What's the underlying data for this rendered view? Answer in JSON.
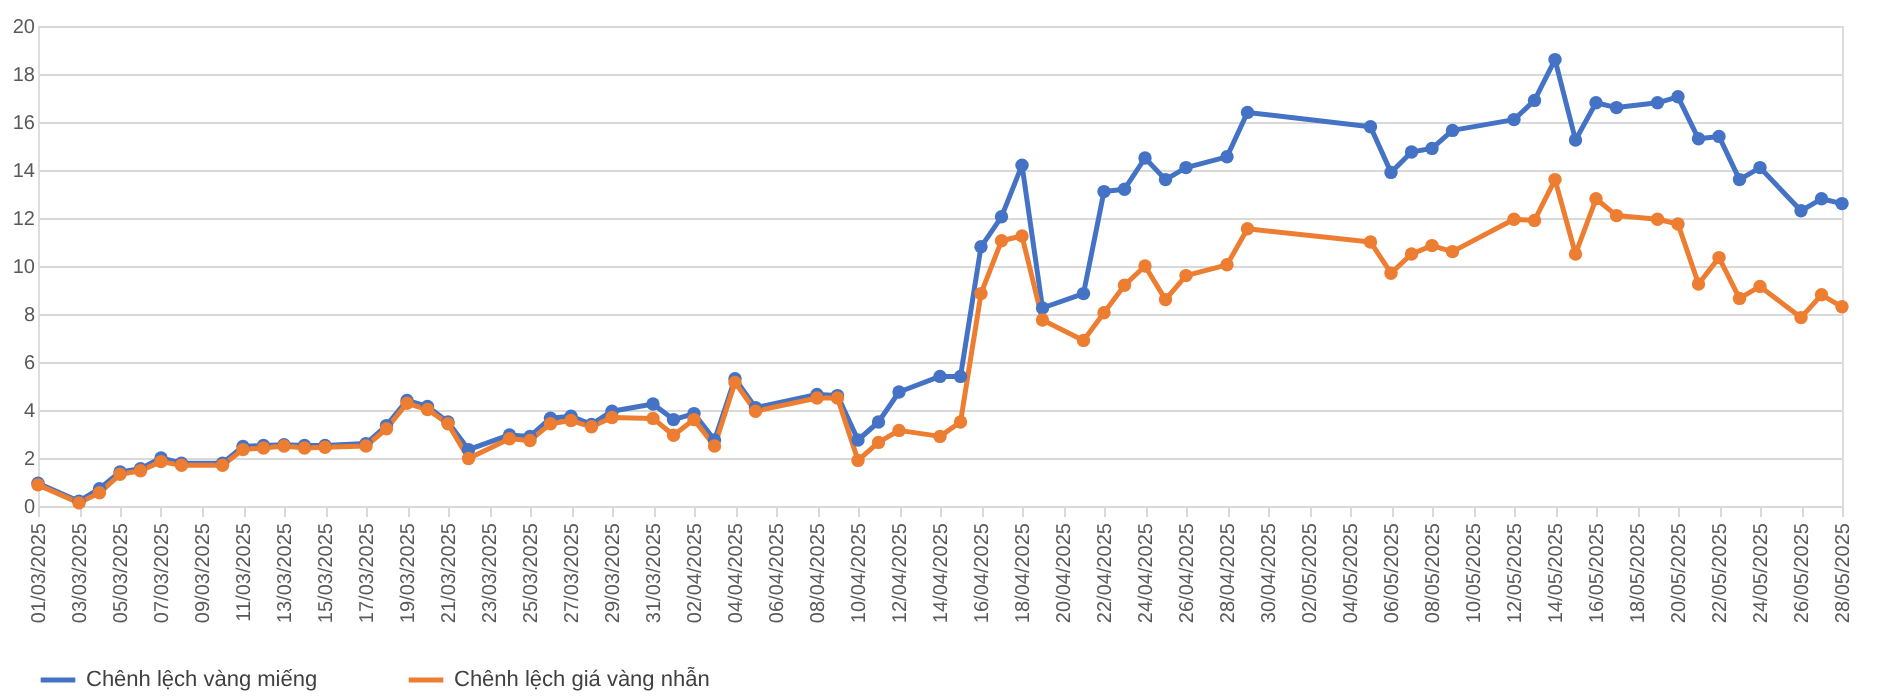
{
  "chart_data": {
    "type": "line",
    "x": [
      "2025-03-01",
      "2025-03-03",
      "2025-03-04",
      "2025-03-05",
      "2025-03-06",
      "2025-03-07",
      "2025-03-08",
      "2025-03-10",
      "2025-03-11",
      "2025-03-12",
      "2025-03-13",
      "2025-03-14",
      "2025-03-15",
      "2025-03-17",
      "2025-03-18",
      "2025-03-19",
      "2025-03-20",
      "2025-03-21",
      "2025-03-22",
      "2025-03-24",
      "2025-03-25",
      "2025-03-26",
      "2025-03-27",
      "2025-03-28",
      "2025-03-29",
      "2025-03-31",
      "2025-04-01",
      "2025-04-02",
      "2025-04-03",
      "2025-04-04",
      "2025-04-05",
      "2025-04-08",
      "2025-04-09",
      "2025-04-10",
      "2025-04-11",
      "2025-04-12",
      "2025-04-14",
      "2025-04-15",
      "2025-04-16",
      "2025-04-17",
      "2025-04-18",
      "2025-04-19",
      "2025-04-21",
      "2025-04-22",
      "2025-04-23",
      "2025-04-24",
      "2025-04-25",
      "2025-04-26",
      "2025-04-28",
      "2025-04-29",
      "2025-05-05",
      "2025-05-06",
      "2025-05-07",
      "2025-05-08",
      "2025-05-09",
      "2025-05-12",
      "2025-05-13",
      "2025-05-14",
      "2025-05-15",
      "2025-05-16",
      "2025-05-17",
      "2025-05-19",
      "2025-05-20",
      "2025-05-21",
      "2025-05-22",
      "2025-05-23",
      "2025-05-24",
      "2025-05-26",
      "2025-05-27",
      "2025-05-28"
    ],
    "series": [
      {
        "name": "Chênh lệch vàng miếng",
        "color": "#4472c4",
        "values": [
          0.95,
          0.2,
          0.72,
          1.42,
          1.55,
          2.0,
          1.78,
          1.78,
          2.48,
          2.52,
          2.55,
          2.52,
          2.52,
          2.6,
          3.35,
          4.4,
          4.15,
          3.5,
          2.35,
          2.96,
          2.9,
          3.66,
          3.74,
          3.4,
          3.95,
          4.25,
          3.6,
          3.85,
          2.75,
          5.3,
          4.1,
          4.65,
          4.6,
          2.75,
          3.5,
          4.75,
          5.4,
          5.4,
          10.8,
          12.05,
          14.2,
          8.25,
          8.85,
          13.1,
          13.2,
          14.5,
          13.6,
          14.1,
          14.55,
          16.4,
          15.8,
          13.9,
          14.75,
          14.9,
          15.65,
          16.1,
          16.9,
          18.6,
          15.25,
          16.8,
          16.6,
          16.8,
          17.05,
          15.3,
          15.4,
          13.6,
          14.1,
          12.3,
          12.8,
          12.6
        ]
      },
      {
        "name": "Chênh lệch giá vàng nhẫn",
        "color": "#ed7d31",
        "values": [
          0.88,
          0.13,
          0.55,
          1.32,
          1.47,
          1.85,
          1.7,
          1.7,
          2.35,
          2.42,
          2.5,
          2.42,
          2.45,
          2.5,
          3.22,
          4.28,
          4.02,
          3.43,
          1.98,
          2.8,
          2.73,
          3.43,
          3.56,
          3.3,
          3.69,
          3.65,
          2.95,
          3.6,
          2.5,
          5.15,
          3.95,
          4.5,
          4.5,
          1.9,
          2.65,
          3.15,
          2.9,
          3.5,
          8.85,
          11.05,
          11.25,
          7.75,
          6.9,
          8.05,
          9.2,
          10.0,
          8.6,
          9.6,
          10.05,
          11.55,
          11.0,
          9.7,
          10.5,
          10.85,
          10.6,
          11.95,
          11.9,
          13.6,
          10.5,
          12.8,
          12.1,
          11.95,
          11.75,
          9.25,
          10.35,
          8.65,
          9.15,
          7.85,
          8.8,
          8.3
        ]
      }
    ],
    "xlim": [
      "2025-03-01",
      "2025-05-28"
    ],
    "xticks": [
      {
        "value": "2025-03-01",
        "label": "01/03/2025"
      },
      {
        "value": "2025-03-03",
        "label": "03/03/2025"
      },
      {
        "value": "2025-03-05",
        "label": "05/03/2025"
      },
      {
        "value": "2025-03-07",
        "label": "07/03/2025"
      },
      {
        "value": "2025-03-09",
        "label": "09/03/2025"
      },
      {
        "value": "2025-03-11",
        "label": "11/03/2025"
      },
      {
        "value": "2025-03-13",
        "label": "13/03/2025"
      },
      {
        "value": "2025-03-15",
        "label": "15/03/2025"
      },
      {
        "value": "2025-03-17",
        "label": "17/03/2025"
      },
      {
        "value": "2025-03-19",
        "label": "19/03/2025"
      },
      {
        "value": "2025-03-21",
        "label": "21/03/2025"
      },
      {
        "value": "2025-03-23",
        "label": "23/03/2025"
      },
      {
        "value": "2025-03-25",
        "label": "25/03/2025"
      },
      {
        "value": "2025-03-27",
        "label": "27/03/2025"
      },
      {
        "value": "2025-03-29",
        "label": "29/03/2025"
      },
      {
        "value": "2025-03-31",
        "label": "31/03/2025"
      },
      {
        "value": "2025-04-02",
        "label": "02/04/2025"
      },
      {
        "value": "2025-04-04",
        "label": "04/04/2025"
      },
      {
        "value": "2025-04-06",
        "label": "06/04/2025"
      },
      {
        "value": "2025-04-08",
        "label": "08/04/2025"
      },
      {
        "value": "2025-04-10",
        "label": "10/04/2025"
      },
      {
        "value": "2025-04-12",
        "label": "12/04/2025"
      },
      {
        "value": "2025-04-14",
        "label": "14/04/2025"
      },
      {
        "value": "2025-04-16",
        "label": "16/04/2025"
      },
      {
        "value": "2025-04-18",
        "label": "18/04/2025"
      },
      {
        "value": "2025-04-20",
        "label": "20/04/2025"
      },
      {
        "value": "2025-04-22",
        "label": "22/04/2025"
      },
      {
        "value": "2025-04-24",
        "label": "24/04/2025"
      },
      {
        "value": "2025-04-26",
        "label": "26/04/2025"
      },
      {
        "value": "2025-04-28",
        "label": "28/04/2025"
      },
      {
        "value": "2025-04-30",
        "label": "30/04/2025"
      },
      {
        "value": "2025-05-02",
        "label": "02/05/2025"
      },
      {
        "value": "2025-05-04",
        "label": "04/05/2025"
      },
      {
        "value": "2025-05-06",
        "label": "06/05/2025"
      },
      {
        "value": "2025-05-08",
        "label": "08/05/2025"
      },
      {
        "value": "2025-05-10",
        "label": "10/05/2025"
      },
      {
        "value": "2025-05-12",
        "label": "12/05/2025"
      },
      {
        "value": "2025-05-14",
        "label": "14/05/2025"
      },
      {
        "value": "2025-05-16",
        "label": "16/05/2025"
      },
      {
        "value": "2025-05-18",
        "label": "18/05/2025"
      },
      {
        "value": "2025-05-20",
        "label": "20/05/2025"
      },
      {
        "value": "2025-05-22",
        "label": "22/05/2025"
      },
      {
        "value": "2025-05-24",
        "label": "24/05/2025"
      },
      {
        "value": "2025-05-26",
        "label": "26/05/2025"
      },
      {
        "value": "2025-05-28",
        "label": "28/05/2025"
      }
    ],
    "ylim": [
      0,
      20
    ],
    "yticks": [
      0,
      2,
      4,
      6,
      8,
      10,
      12,
      14,
      16,
      18,
      20
    ],
    "grid": "y",
    "legend": "bottom",
    "marker": "circle",
    "line_style": "solid"
  }
}
